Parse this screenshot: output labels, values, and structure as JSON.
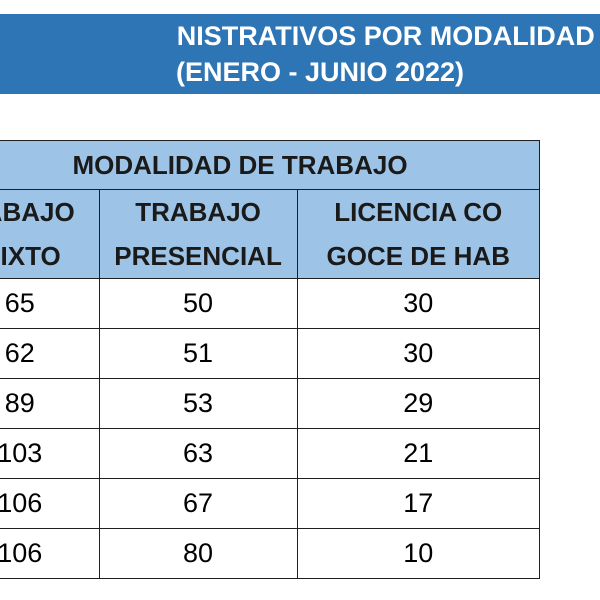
{
  "title": {
    "line1": "NISTRATIVOS POR MODALIDAD DE TR",
    "line2": "(ENERO - JUNIO 2022)"
  },
  "table": {
    "group_header": "MODALIDAD DE TRABAJO",
    "columns": [
      {
        "line1": "RABAJO",
        "line2": "MIXTO"
      },
      {
        "line1": "TRABAJO",
        "line2": "PRESENCIAL"
      },
      {
        "line1": "LICENCIA CO",
        "line2": "GOCE DE HAB"
      }
    ],
    "rows": [
      [
        "65",
        "50",
        "30"
      ],
      [
        "62",
        "51",
        "30"
      ],
      [
        "89",
        "53",
        "29"
      ],
      [
        "103",
        "63",
        "21"
      ],
      [
        "106",
        "67",
        "17"
      ],
      [
        "106",
        "80",
        "10"
      ]
    ]
  },
  "colors": {
    "banner": "#2e75b6",
    "header_fill": "#9dc3e6"
  }
}
